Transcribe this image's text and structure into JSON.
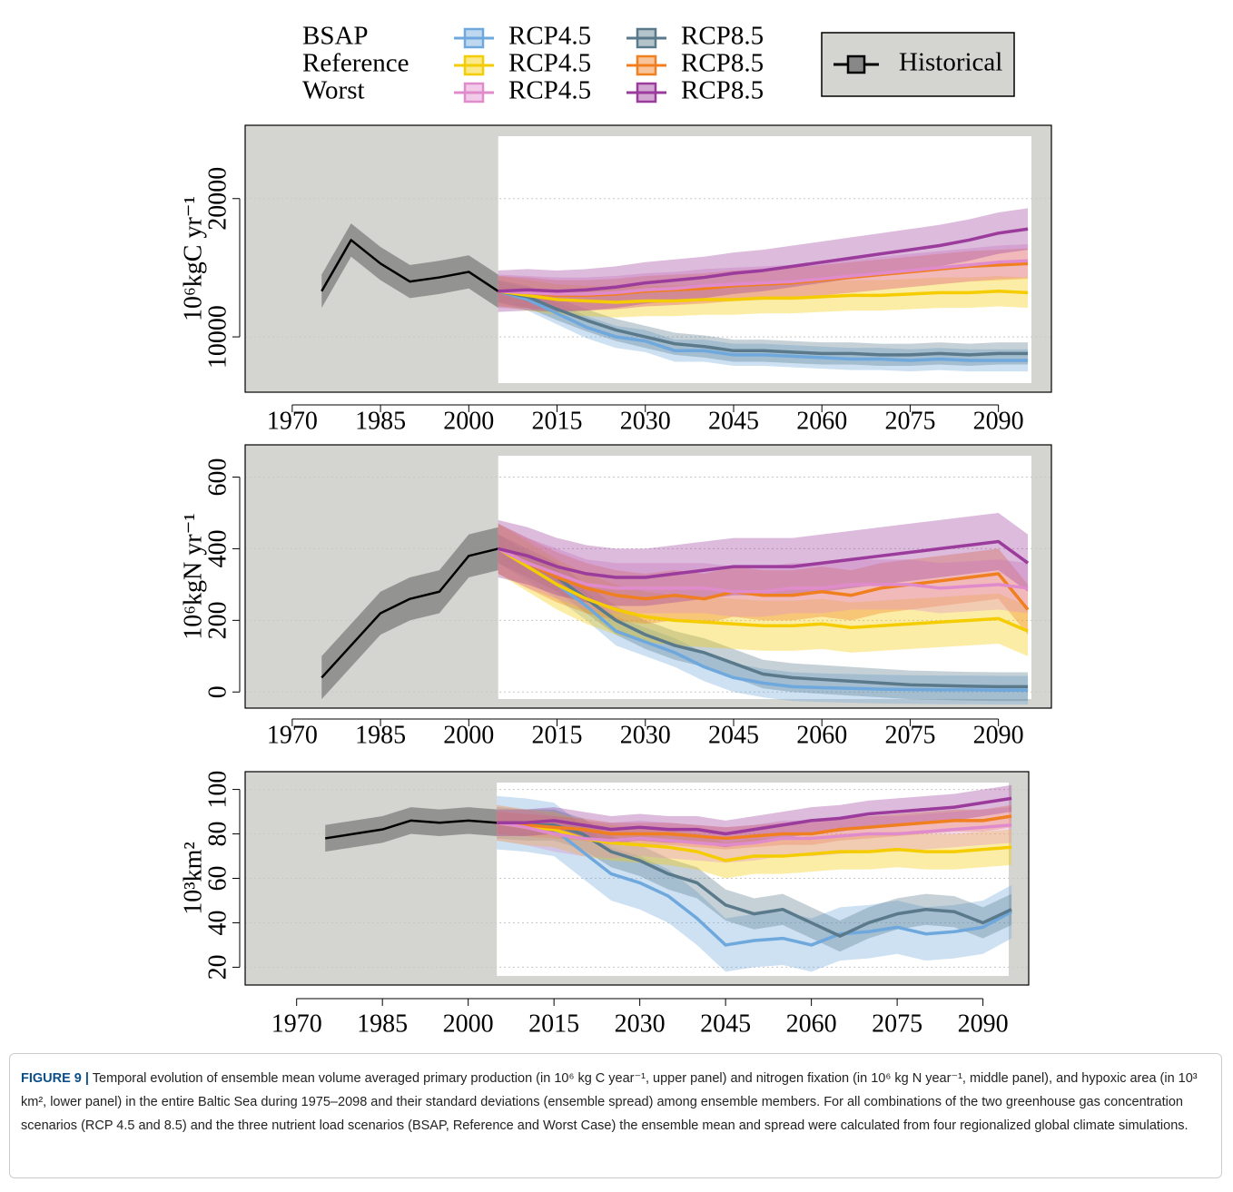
{
  "legend": {
    "groups": [
      "BSAP",
      "Reference",
      "Worst"
    ],
    "entries": [
      [
        {
          "name": "RCP4.5",
          "color": "#6fa8dc"
        },
        {
          "name": "RCP8.5",
          "color": "#5a7a8c"
        }
      ],
      [
        {
          "name": "RCP4.5",
          "color": "#f5cc00"
        },
        {
          "name": "RCP8.5",
          "color": "#f07f20"
        }
      ],
      [
        {
          "name": "RCP4.5",
          "color": "#e08ccc"
        },
        {
          "name": "RCP8.5",
          "color": "#9b3b9b"
        }
      ]
    ],
    "historical": {
      "name": "Historical",
      "color": "#000000"
    }
  },
  "chart_data": [
    {
      "type": "line",
      "y_label": "10⁶kgC yr⁻¹",
      "xlim": [
        1962,
        2099
      ],
      "xticks": [
        1970,
        1985,
        2000,
        2015,
        2030,
        2045,
        2060,
        2075,
        2090
      ],
      "ylim": [
        6000,
        25300
      ],
      "yticks": [
        10000,
        20000
      ],
      "grid": true,
      "x": [
        1975,
        1980,
        1985,
        1990,
        1995,
        2000,
        2005,
        2010,
        2015,
        2020,
        2025,
        2030,
        2035,
        2040,
        2045,
        2050,
        2055,
        2060,
        2065,
        2070,
        2075,
        2080,
        2085,
        2090,
        2095
      ],
      "series": [
        {
          "color": "#000000",
          "spread": 1200,
          "values": [
            13300,
            17000,
            15300,
            14000,
            14300,
            14700,
            13300,
            null,
            null,
            null,
            null,
            null,
            null,
            null,
            null,
            null,
            null,
            null,
            null,
            null,
            null,
            null,
            null,
            null,
            null
          ]
        },
        {
          "color": "#6fa8dc",
          "spread": 800,
          "values": [
            null,
            null,
            null,
            null,
            null,
            null,
            13300,
            12700,
            11700,
            10700,
            10000,
            9700,
            9000,
            9000,
            8700,
            8700,
            8600,
            8500,
            8400,
            8400,
            8300,
            8400,
            8300,
            8300,
            8300
          ]
        },
        {
          "color": "#5a7a8c",
          "spread": 800,
          "values": [
            null,
            null,
            null,
            null,
            null,
            null,
            13300,
            12900,
            12000,
            11200,
            10500,
            10000,
            9500,
            9300,
            9000,
            9000,
            8900,
            8800,
            8800,
            8700,
            8700,
            8800,
            8700,
            8800,
            8800
          ]
        },
        {
          "color": "#f5cc00",
          "spread": 1100,
          "values": [
            null,
            null,
            null,
            null,
            null,
            null,
            13300,
            13000,
            12700,
            12600,
            12500,
            12600,
            12600,
            12700,
            12700,
            12800,
            12800,
            12900,
            13000,
            13000,
            13100,
            13200,
            13200,
            13300,
            13200
          ]
        },
        {
          "color": "#f07f20",
          "spread": 1100,
          "values": [
            null,
            null,
            null,
            null,
            null,
            null,
            13300,
            13200,
            13000,
            13000,
            13100,
            13300,
            13400,
            13500,
            13700,
            13800,
            13900,
            14100,
            14300,
            14500,
            14700,
            14900,
            15100,
            15200,
            15300
          ]
        },
        {
          "color": "#e08ccc",
          "spread": 1200,
          "values": [
            null,
            null,
            null,
            null,
            null,
            null,
            13300,
            13200,
            13100,
            13100,
            13200,
            13400,
            13500,
            13700,
            13800,
            13900,
            14000,
            14200,
            14400,
            14600,
            14800,
            15000,
            15200,
            15400,
            15500
          ]
        },
        {
          "color": "#9b3b9b",
          "spread": 1500,
          "values": [
            null,
            null,
            null,
            null,
            null,
            null,
            13300,
            13400,
            13300,
            13400,
            13600,
            13900,
            14100,
            14300,
            14600,
            14800,
            15100,
            15400,
            15700,
            16000,
            16300,
            16600,
            17000,
            17500,
            17800
          ]
        }
      ]
    },
    {
      "type": "line",
      "y_label": "10⁶kgN yr⁻¹",
      "xlim": [
        1962,
        2099
      ],
      "xticks": [
        1970,
        1985,
        2000,
        2015,
        2030,
        2045,
        2060,
        2075,
        2090
      ],
      "ylim": [
        -45,
        690
      ],
      "yticks": [
        0,
        200,
        400,
        600
      ],
      "grid": true,
      "x": [
        1975,
        1980,
        1985,
        1990,
        1995,
        2000,
        2005,
        2010,
        2015,
        2020,
        2025,
        2030,
        2035,
        2040,
        2045,
        2050,
        2055,
        2060,
        2065,
        2070,
        2075,
        2080,
        2085,
        2090,
        2095
      ],
      "series": [
        {
          "color": "#000000",
          "spread": 60,
          "values": [
            40,
            130,
            220,
            260,
            280,
            380,
            400,
            null,
            null,
            null,
            null,
            null,
            null,
            null,
            null,
            null,
            null,
            null,
            null,
            null,
            null,
            null,
            null,
            null,
            null
          ]
        },
        {
          "color": "#6fa8dc",
          "spread": 40,
          "values": [
            null,
            null,
            null,
            null,
            null,
            null,
            400,
            350,
            300,
            240,
            170,
            140,
            110,
            70,
            40,
            25,
            15,
            12,
            10,
            8,
            7,
            6,
            6,
            5,
            5
          ]
        },
        {
          "color": "#5a7a8c",
          "spread": 40,
          "values": [
            null,
            null,
            null,
            null,
            null,
            null,
            400,
            360,
            320,
            260,
            200,
            160,
            130,
            110,
            80,
            50,
            40,
            35,
            30,
            25,
            20,
            18,
            16,
            15,
            15
          ]
        },
        {
          "color": "#f5cc00",
          "spread": 70,
          "values": [
            null,
            null,
            null,
            null,
            null,
            null,
            400,
            350,
            300,
            260,
            230,
            210,
            200,
            195,
            190,
            185,
            185,
            190,
            180,
            185,
            190,
            195,
            200,
            205,
            170
          ]
        },
        {
          "color": "#f07f20",
          "spread": 70,
          "values": [
            null,
            null,
            null,
            null,
            null,
            null,
            400,
            360,
            320,
            290,
            270,
            260,
            270,
            260,
            280,
            270,
            270,
            280,
            270,
            290,
            300,
            310,
            320,
            330,
            230
          ]
        },
        {
          "color": "#e08ccc",
          "spread": 70,
          "values": [
            null,
            null,
            null,
            null,
            null,
            null,
            400,
            360,
            330,
            300,
            290,
            290,
            290,
            290,
            280,
            280,
            290,
            290,
            300,
            300,
            300,
            290,
            295,
            300,
            290
          ]
        },
        {
          "color": "#9b3b9b",
          "spread": 80,
          "values": [
            null,
            null,
            null,
            null,
            null,
            null,
            400,
            380,
            350,
            330,
            320,
            320,
            330,
            340,
            350,
            350,
            350,
            360,
            370,
            380,
            390,
            400,
            410,
            420,
            360
          ]
        }
      ]
    },
    {
      "type": "line",
      "y_label": "10³km²",
      "xlim": [
        1961,
        2098
      ],
      "xticks": [
        1970,
        1985,
        2000,
        2015,
        2030,
        2045,
        2060,
        2075,
        2090
      ],
      "ylim": [
        12,
        108
      ],
      "yticks": [
        20,
        40,
        60,
        80,
        100
      ],
      "grid": true,
      "x": [
        1975,
        1980,
        1985,
        1990,
        1995,
        2000,
        2005,
        2010,
        2015,
        2020,
        2025,
        2030,
        2035,
        2040,
        2045,
        2050,
        2055,
        2060,
        2065,
        2070,
        2075,
        2080,
        2085,
        2090,
        2095
      ],
      "series": [
        {
          "color": "#000000",
          "spread": 6,
          "values": [
            78,
            80,
            82,
            86,
            85,
            86,
            85,
            null,
            null,
            null,
            null,
            null,
            null,
            null,
            null,
            null,
            null,
            null,
            null,
            null,
            null,
            null,
            null,
            null,
            null
          ]
        },
        {
          "color": "#6fa8dc",
          "spread": 12,
          "values": [
            null,
            null,
            null,
            null,
            null,
            null,
            85,
            84,
            82,
            72,
            62,
            58,
            52,
            42,
            30,
            32,
            33,
            30,
            35,
            36,
            38,
            35,
            36,
            38,
            45
          ]
        },
        {
          "color": "#5a7a8c",
          "spread": 7,
          "values": [
            null,
            null,
            null,
            null,
            null,
            null,
            85,
            84,
            84,
            80,
            72,
            68,
            62,
            58,
            48,
            44,
            46,
            40,
            34,
            40,
            44,
            46,
            45,
            40,
            46
          ]
        },
        {
          "color": "#f5cc00",
          "spread": 8,
          "values": [
            null,
            null,
            null,
            null,
            null,
            null,
            85,
            83,
            82,
            78,
            76,
            75,
            74,
            72,
            68,
            70,
            70,
            71,
            72,
            72,
            73,
            72,
            72,
            73,
            74
          ]
        },
        {
          "color": "#f07f20",
          "spread": 5,
          "values": [
            null,
            null,
            null,
            null,
            null,
            null,
            85,
            84,
            83,
            82,
            80,
            80,
            80,
            79,
            78,
            79,
            80,
            80,
            82,
            83,
            84,
            85,
            86,
            86,
            88
          ]
        },
        {
          "color": "#e08ccc",
          "spread": 8,
          "values": [
            null,
            null,
            null,
            null,
            null,
            null,
            85,
            83,
            80,
            78,
            77,
            78,
            77,
            76,
            75,
            76,
            78,
            78,
            79,
            80,
            80,
            81,
            82,
            83,
            84
          ]
        },
        {
          "color": "#9b3b9b",
          "spread": 6,
          "values": [
            null,
            null,
            null,
            null,
            null,
            null,
            85,
            85,
            86,
            84,
            82,
            83,
            82,
            82,
            80,
            82,
            84,
            86,
            87,
            89,
            90,
            91,
            92,
            94,
            96
          ]
        }
      ]
    }
  ],
  "caption": {
    "label": "FIGURE 9 |",
    "text": "Temporal evolution of ensemble mean volume averaged primary production (in 10⁶ kg C year⁻¹, upper panel) and nitrogen fixation (in 10⁶ kg N year⁻¹, middle panel), and hypoxic area (in 10³ km², lower panel) in the entire Baltic Sea during 1975–2098 and their standard deviations (ensemble spread) among ensemble members. For all combinations of the two greenhouse gas concentration scenarios (RCP 4.5 and 8.5) and the three nutrient load scenarios (BSAP, Reference and Worst Case) the ensemble mean and spread were calculated from four regionalized global climate simulations."
  }
}
